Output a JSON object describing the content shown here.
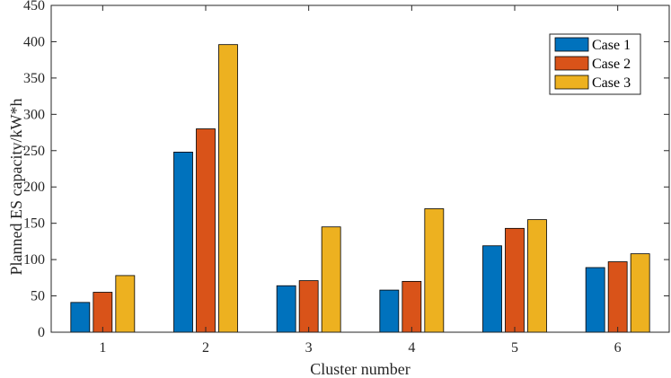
{
  "chart_data": {
    "type": "bar",
    "title": "",
    "xlabel": "Cluster number",
    "ylabel": "Planned ES capacity/kW*h",
    "categories": [
      "1",
      "2",
      "3",
      "4",
      "5",
      "6"
    ],
    "ylim": [
      0,
      450
    ],
    "yticks": [
      0,
      50,
      100,
      150,
      200,
      250,
      300,
      350,
      400,
      450
    ],
    "grid": false,
    "legend_position": "top-right",
    "series": [
      {
        "name": "Case 1",
        "color": "#0072BD",
        "values": [
          41,
          248,
          64,
          58,
          119,
          89
        ]
      },
      {
        "name": "Case 2",
        "color": "#D95319",
        "values": [
          55,
          280,
          71,
          70,
          143,
          97
        ]
      },
      {
        "name": "Case 3",
        "color": "#EDB120",
        "values": [
          78,
          396,
          145,
          170,
          155,
          108
        ]
      }
    ]
  }
}
